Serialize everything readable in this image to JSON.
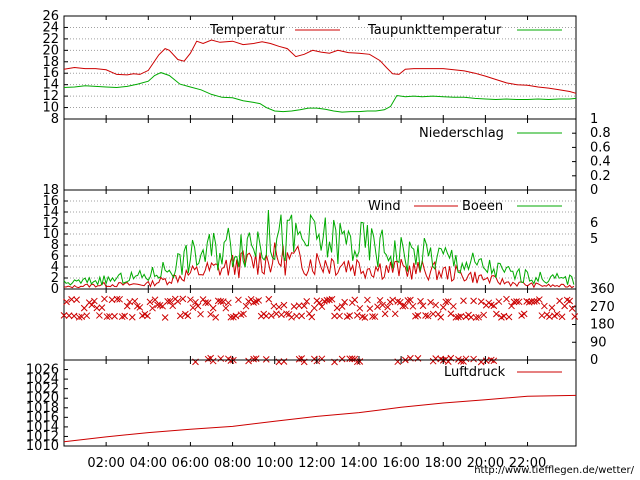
{
  "chart_data": [
    {
      "type": "line",
      "title": "",
      "ylim": [
        8,
        26
      ],
      "yticks": [
        8,
        10,
        12,
        14,
        16,
        18,
        20,
        22,
        24,
        26
      ],
      "grid": true,
      "legend_placement": "top-right",
      "series": [
        {
          "name": "Temperatur",
          "color": "#cc0000",
          "x": [
            0,
            0.5,
            1,
            1.5,
            2,
            2.5,
            3,
            3.3,
            3.6,
            4,
            4.5,
            4.8,
            5,
            5.4,
            5.7,
            6,
            6.3,
            6.6,
            7,
            7.4,
            8,
            8.5,
            9,
            9.4,
            9.8,
            10.2,
            10.6,
            11,
            11.4,
            11.8,
            12.2,
            12.6,
            13,
            13.5,
            14,
            14.5,
            15,
            15.3,
            15.6,
            15.9,
            16.2,
            16.6,
            17,
            17.5,
            18,
            18.5,
            19,
            19.5,
            20,
            20.5,
            21,
            21.5,
            22,
            22.5,
            23,
            23.5,
            24,
            24.3
          ],
          "values": [
            16.7,
            17.0,
            16.8,
            16.8,
            16.6,
            15.8,
            15.7,
            15.9,
            15.8,
            16.5,
            19.2,
            20.3,
            20.0,
            18.4,
            18.1,
            19.5,
            21.6,
            21.2,
            21.8,
            21.4,
            21.6,
            21.0,
            21.2,
            21.5,
            21.2,
            20.7,
            20.3,
            18.9,
            19.3,
            20.0,
            19.7,
            19.5,
            20.0,
            19.6,
            19.5,
            19.3,
            18.2,
            17.0,
            15.9,
            15.8,
            16.7,
            16.8,
            16.8,
            16.8,
            16.8,
            16.6,
            16.4,
            16.0,
            15.5,
            14.9,
            14.3,
            14.0,
            13.9,
            13.6,
            13.4,
            13.1,
            12.8,
            12.5
          ]
        },
        {
          "name": "Taupunkttemperatur",
          "color": "#00aa00",
          "x": [
            0,
            0.5,
            1,
            1.5,
            2,
            2.5,
            3,
            3.5,
            4,
            4.3,
            4.6,
            5,
            5.5,
            6,
            6.5,
            7,
            7.5,
            8,
            8.5,
            9,
            9.3,
            9.6,
            10,
            10.4,
            10.8,
            11.2,
            11.6,
            12,
            12.4,
            12.8,
            13.2,
            13.6,
            14,
            14.4,
            14.8,
            15.2,
            15.5,
            15.8,
            16.2,
            16.6,
            17,
            17.5,
            18,
            18.5,
            19,
            19.5,
            20,
            20.5,
            21,
            21.5,
            22,
            22.5,
            23,
            23.5,
            24,
            24.3
          ],
          "values": [
            13.5,
            13.6,
            13.8,
            13.7,
            13.6,
            13.5,
            13.7,
            14.1,
            14.6,
            15.6,
            16.1,
            15.6,
            14.1,
            13.6,
            13.1,
            12.3,
            11.8,
            11.7,
            11.2,
            10.9,
            10.7,
            10.0,
            9.4,
            9.3,
            9.4,
            9.6,
            9.9,
            9.9,
            9.7,
            9.4,
            9.2,
            9.3,
            9.3,
            9.4,
            9.4,
            9.6,
            10.2,
            12.1,
            11.9,
            12.0,
            11.9,
            12.0,
            11.9,
            11.8,
            11.8,
            11.6,
            11.5,
            11.4,
            11.5,
            11.4,
            11.4,
            11.5,
            11.4,
            11.5,
            11.5,
            11.6
          ]
        }
      ]
    },
    {
      "type": "line",
      "title": "",
      "ylim": [
        0,
        1
      ],
      "yticks": [
        0,
        0.2,
        0.4,
        0.6,
        0.8,
        1
      ],
      "legend_placement": "top-right",
      "series": [
        {
          "name": "Niederschlag",
          "color": "#00aa00",
          "x": [
            0,
            24.3
          ],
          "values": [
            0,
            0
          ]
        }
      ]
    },
    {
      "type": "line",
      "title": "",
      "ylim": [
        0,
        18
      ],
      "yticks": [
        0,
        2,
        4,
        6,
        8,
        10,
        12,
        14,
        16,
        18
      ],
      "right_ticks": [
        "6",
        "5"
      ],
      "legend_placement": "top-right",
      "series": [
        {
          "name": "Wind",
          "color": "#cc0000",
          "x": [
            0,
            1,
            2,
            3,
            4,
            5,
            6,
            7,
            8,
            9,
            10,
            11,
            12,
            13,
            14,
            15,
            16,
            17,
            18,
            19,
            20,
            21,
            22,
            23,
            24.3
          ],
          "values": [
            0.3,
            0.6,
            0.8,
            0.8,
            0.9,
            1.8,
            2.8,
            3.5,
            4.2,
            5.0,
            5.5,
            5.2,
            5.0,
            4.8,
            4.2,
            3.8,
            3.6,
            3.4,
            3.0,
            2.6,
            1.8,
            1.2,
            0.8,
            0.6,
            0.5
          ]
        },
        {
          "name": "Boeen",
          "color": "#00aa00",
          "x": [
            0,
            1,
            2,
            3,
            4,
            5,
            6,
            7,
            8,
            9,
            10,
            11,
            12,
            13,
            14,
            15,
            16,
            17,
            18,
            19,
            20,
            21,
            22,
            23,
            24.3
          ],
          "values": [
            1.0,
            1.4,
            1.6,
            2.0,
            2.4,
            4.0,
            5.8,
            7.0,
            8.2,
            9.0,
            9.4,
            9.0,
            8.8,
            8.8,
            8.2,
            7.4,
            6.6,
            6.2,
            5.8,
            4.8,
            4.0,
            3.0,
            2.2,
            2.0,
            1.6
          ]
        }
      ]
    },
    {
      "type": "scatter",
      "title": "",
      "ylim": [
        0,
        360
      ],
      "yticks": [
        0,
        90,
        180,
        270,
        360
      ],
      "series": [
        {
          "name": "",
          "color": "#cc0000",
          "pattern_x_range": [
            0,
            24.3
          ],
          "pattern_bands": [
            {
              "values": [
                300,
                225,
                270
              ],
              "from": 0,
              "to": 24.3
            },
            {
              "values": [
                0
              ],
              "from": 6,
              "to": 21
            }
          ]
        }
      ]
    },
    {
      "type": "line",
      "title": "",
      "ylim": [
        1010,
        1028
      ],
      "yticks": [
        1010,
        1012,
        1014,
        1016,
        1018,
        1020,
        1022,
        1024,
        1026
      ],
      "legend_placement": "top-right",
      "series": [
        {
          "name": "Luftdruck",
          "color": "#cc0000",
          "x": [
            0,
            2,
            4,
            6,
            8,
            10,
            12,
            14,
            16,
            18,
            20,
            22,
            24.3
          ],
          "values": [
            1010.9,
            1011.9,
            1012.8,
            1013.5,
            1014.1,
            1015.2,
            1016.2,
            1017.0,
            1018.1,
            1019.0,
            1019.7,
            1020.4,
            1020.6
          ]
        }
      ]
    }
  ],
  "x_axis": {
    "ticks": [
      2,
      4,
      6,
      8,
      10,
      12,
      14,
      16,
      18,
      20,
      22
    ],
    "labels": [
      "02:00",
      "04:00",
      "06:00",
      "08:00",
      "10:00",
      "12:00",
      "14:00",
      "16:00",
      "18:00",
      "20:00",
      "22:00"
    ]
  },
  "credit": "http://www.tiefflegen.de/wetter/"
}
